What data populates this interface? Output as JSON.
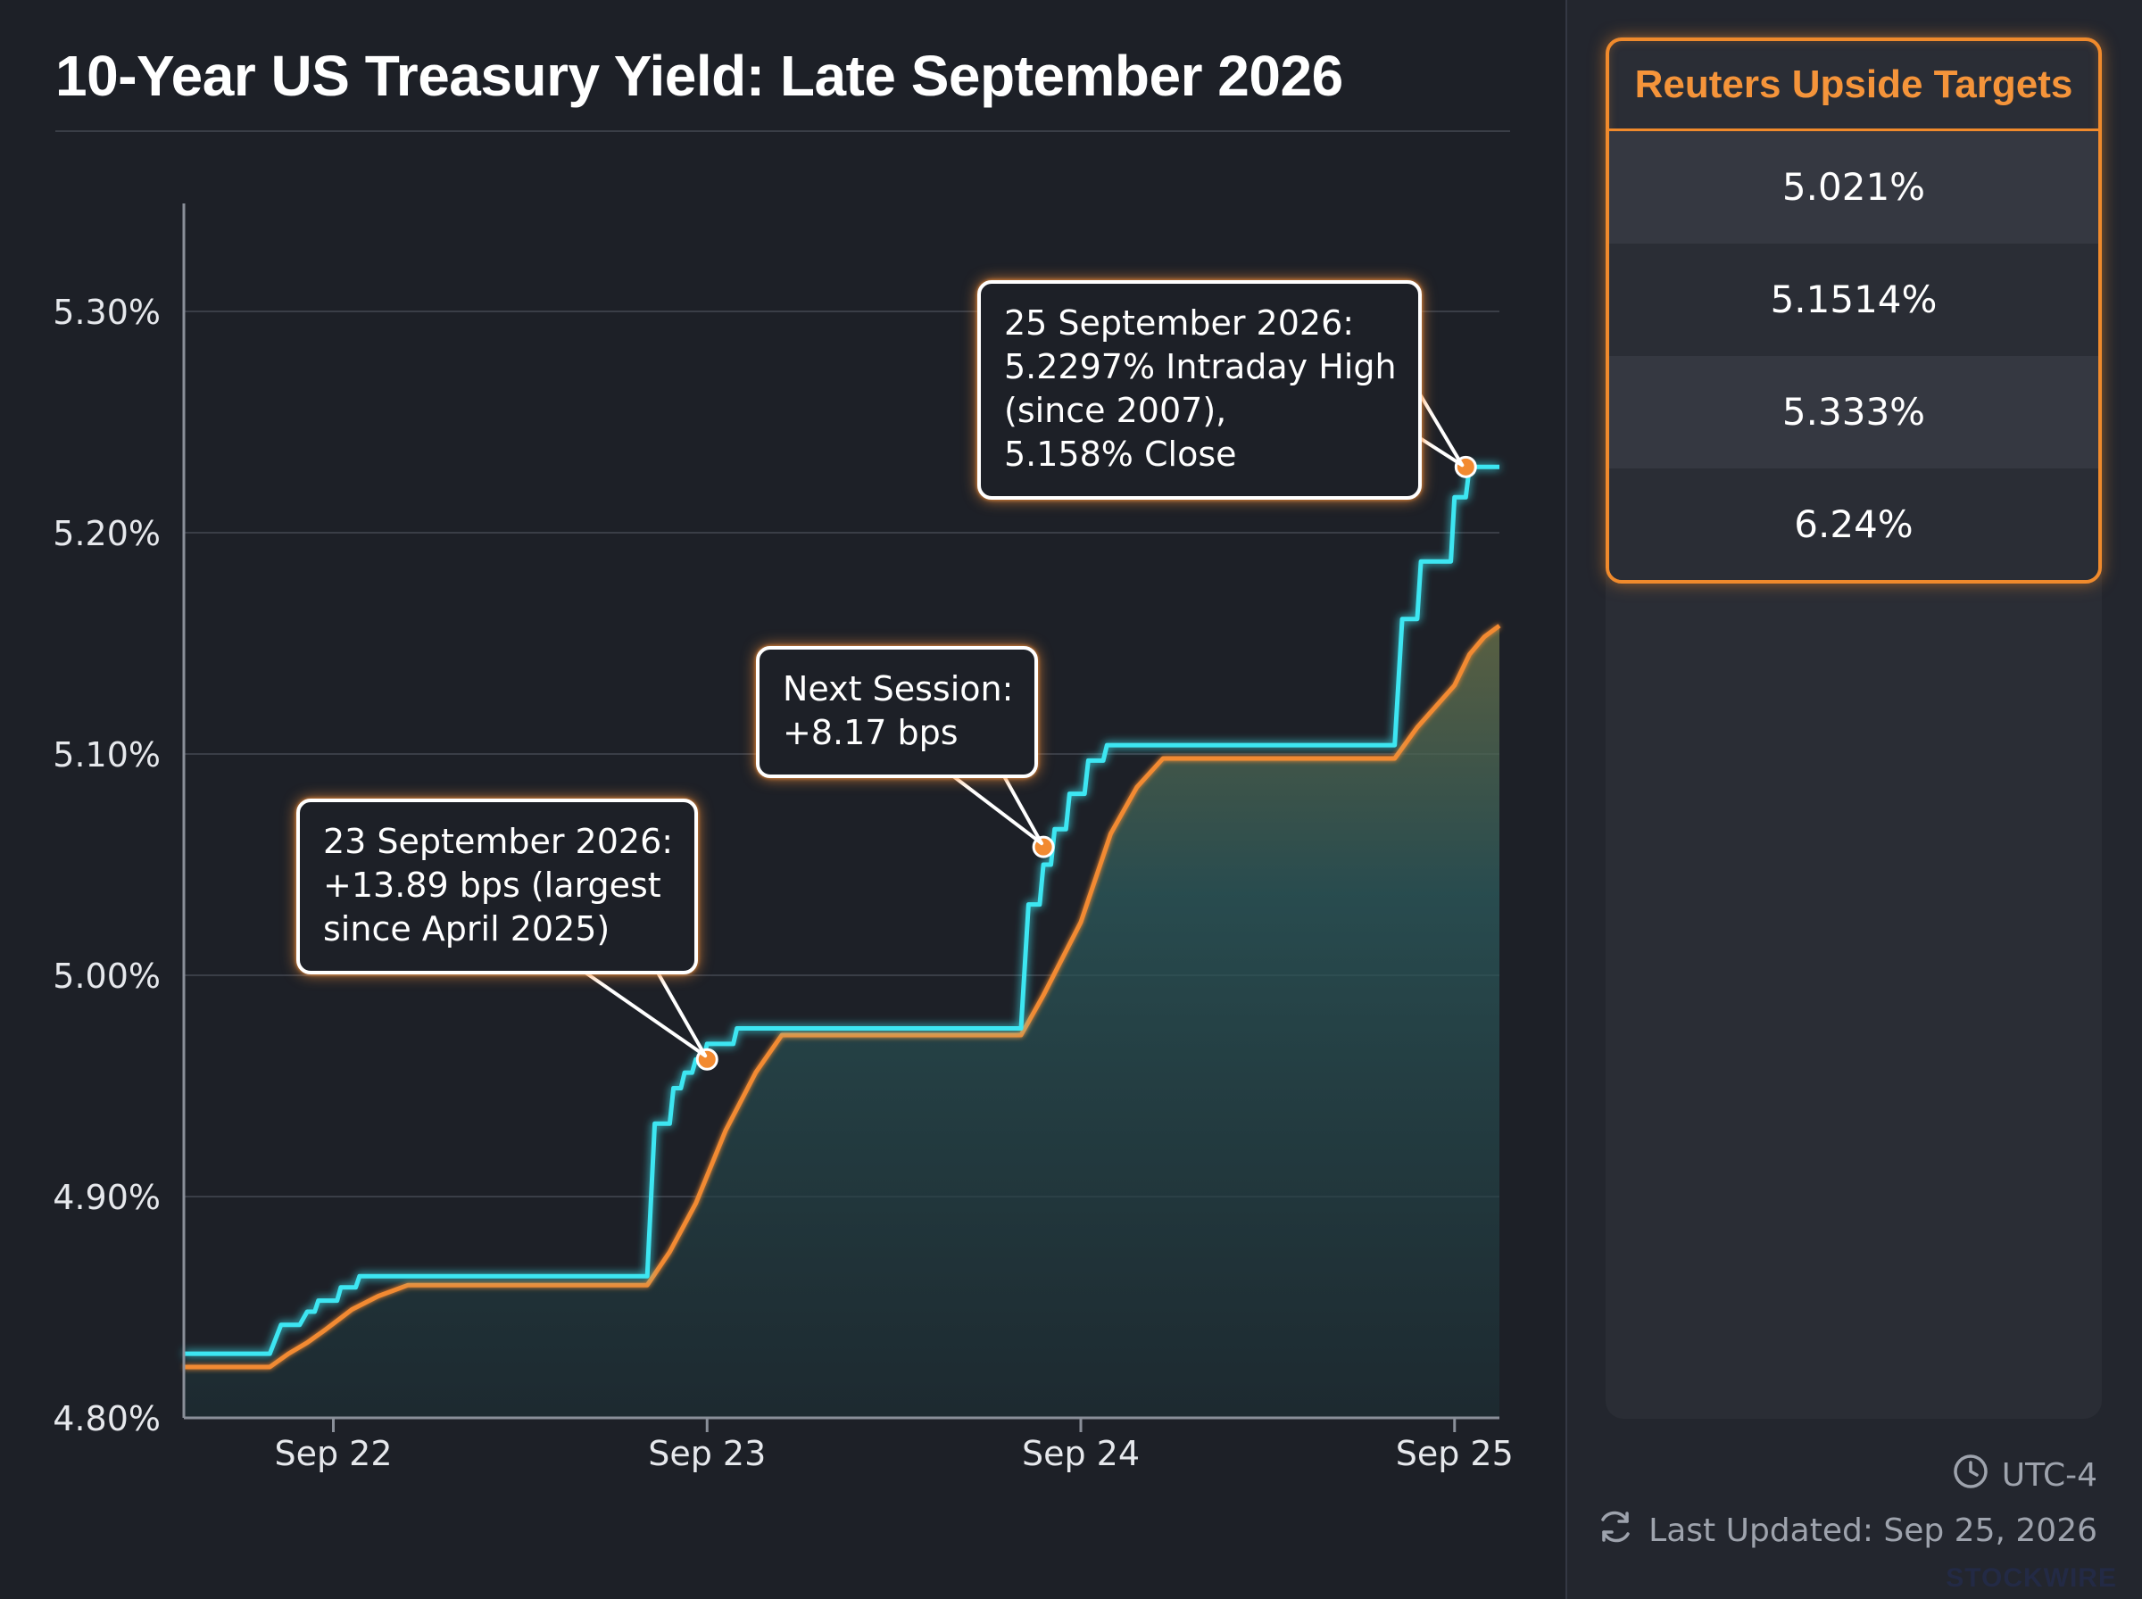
{
  "title": "10-Year US Treasury Yield: Late September 2026",
  "colors": {
    "background": "#1d2027",
    "intraday_line": "#3ee6f2",
    "close_line": "#f28a30",
    "accent": "#f08a2c",
    "callout_glow": "#ff9a3c"
  },
  "chart_data": {
    "type": "line",
    "x_axis": {
      "ticks": [
        "Sep 22",
        "Sep 23",
        "Sep 24",
        "Sep 25"
      ],
      "tick_values": [
        22,
        23,
        24,
        25
      ],
      "range": [
        21.6,
        25.12
      ]
    },
    "y_axis": {
      "ticks": [
        "4.80%",
        "4.90%",
        "5.00%",
        "5.10%",
        "5.20%",
        "5.30%"
      ],
      "tick_values": [
        4.8,
        4.9,
        5.0,
        5.1,
        5.2,
        5.3
      ],
      "range": [
        4.8,
        5.35
      ]
    },
    "grid": true,
    "series": [
      {
        "style": "stepped line, cyan, glowing",
        "color": "#3ee6f2",
        "points": [
          [
            21.6,
            4.829
          ],
          [
            21.83,
            4.829
          ],
          [
            21.86,
            4.842
          ],
          [
            21.91,
            4.842
          ],
          [
            21.93,
            4.848
          ],
          [
            21.95,
            4.848
          ],
          [
            21.96,
            4.853
          ],
          [
            22.01,
            4.853
          ],
          [
            22.02,
            4.859
          ],
          [
            22.06,
            4.859
          ],
          [
            22.07,
            4.864
          ],
          [
            22.84,
            4.864
          ],
          [
            22.86,
            4.933
          ],
          [
            22.9,
            4.933
          ],
          [
            22.91,
            4.949
          ],
          [
            22.93,
            4.949
          ],
          [
            22.94,
            4.956
          ],
          [
            22.96,
            4.956
          ],
          [
            22.97,
            4.962
          ],
          [
            22.99,
            4.962
          ],
          [
            23.0,
            4.969
          ],
          [
            23.07,
            4.969
          ],
          [
            23.08,
            4.976
          ],
          [
            23.84,
            4.976
          ],
          [
            23.86,
            5.032
          ],
          [
            23.89,
            5.032
          ],
          [
            23.9,
            5.05
          ],
          [
            23.92,
            5.05
          ],
          [
            23.93,
            5.066
          ],
          [
            23.96,
            5.066
          ],
          [
            23.97,
            5.082
          ],
          [
            24.01,
            5.082
          ],
          [
            24.02,
            5.097
          ],
          [
            24.06,
            5.097
          ],
          [
            24.07,
            5.104
          ],
          [
            24.84,
            5.104
          ],
          [
            24.86,
            5.161
          ],
          [
            24.9,
            5.161
          ],
          [
            24.91,
            5.187
          ],
          [
            24.99,
            5.187
          ],
          [
            25.0,
            5.216
          ],
          [
            25.03,
            5.216
          ],
          [
            25.04,
            5.2297
          ],
          [
            25.12,
            5.2297
          ]
        ]
      },
      {
        "style": "smooth line, orange, with gradient area fill",
        "color": "#f28a30",
        "points": [
          [
            21.6,
            4.823
          ],
          [
            21.83,
            4.823
          ],
          [
            21.88,
            4.829
          ],
          [
            21.93,
            4.834
          ],
          [
            21.98,
            4.84
          ],
          [
            22.05,
            4.849
          ],
          [
            22.12,
            4.855
          ],
          [
            22.2,
            4.86
          ],
          [
            22.84,
            4.86
          ],
          [
            22.9,
            4.875
          ],
          [
            22.97,
            4.897
          ],
          [
            23.05,
            4.93
          ],
          [
            23.13,
            4.956
          ],
          [
            23.2,
            4.973
          ],
          [
            23.84,
            4.973
          ],
          [
            23.9,
            4.991
          ],
          [
            24.0,
            5.024
          ],
          [
            24.08,
            5.064
          ],
          [
            24.15,
            5.085
          ],
          [
            24.22,
            5.098
          ],
          [
            24.84,
            5.098
          ],
          [
            24.9,
            5.112
          ],
          [
            25.0,
            5.131
          ],
          [
            25.04,
            5.145
          ],
          [
            25.08,
            5.153
          ],
          [
            25.12,
            5.158
          ]
        ]
      }
    ],
    "annotations": [
      {
        "id": "sep23",
        "x": 23.0,
        "y": 4.962,
        "lines": [
          "23 September 2026:",
          "+13.89 bps (largest",
          "since April 2025)"
        ]
      },
      {
        "id": "next",
        "x": 23.9,
        "y": 5.058,
        "lines": [
          "Next Session:",
          "+8.17 bps"
        ]
      },
      {
        "id": "sep25",
        "x": 25.03,
        "y": 5.2297,
        "lines": [
          "25 September 2026:",
          "5.2297% Intraday High",
          "(since 2007),",
          "5.158% Close"
        ]
      }
    ]
  },
  "sidebar": {
    "header": "Reuters Upside Targets",
    "targets": [
      "5.021%",
      "5.1514%",
      "5.333%",
      "6.24%"
    ],
    "timezone": "UTC-4",
    "last_updated": "Last Updated: Sep 25, 2026",
    "timezone_icon": "clock-icon",
    "updated_icon": "refresh-icon"
  },
  "watermark": "STOCKWIRE"
}
